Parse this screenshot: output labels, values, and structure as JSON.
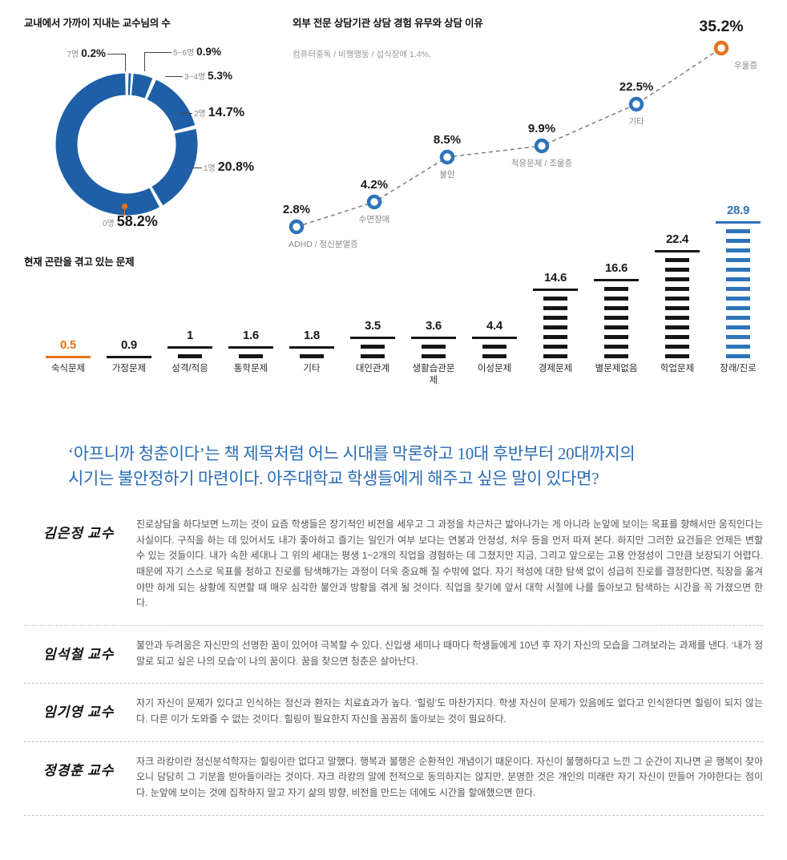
{
  "colors": {
    "blue": "#1e5fa8",
    "light_blue": "#2f74b9",
    "orange": "#e8731a",
    "dash_black": "#151515",
    "text_dark": "#1a1a1a",
    "text_gray": "#8a8a8a",
    "quote_blue": "#2a6cb5"
  },
  "chart_data": [
    {
      "type": "pie",
      "subtype": "donut",
      "title": "교내에서 가까이 지내는 교수님의 수",
      "labels": [
        "7명",
        "5~6명",
        "3~4명",
        "2명",
        "1명",
        "0명"
      ],
      "values": [
        0.2,
        0.9,
        5.3,
        14.7,
        20.8,
        58.2
      ],
      "unit": "%",
      "highlight_label": "0명",
      "ring_color": "#1e5fa8"
    },
    {
      "type": "line",
      "title": "외부 전문 상담기관 상담 경험 유무와 상담 이유",
      "note": "컴퓨터중독 / 비행행동 / 섭식장애 1.4%,",
      "categories": [
        "ADHD / 정신분열증",
        "수면장애",
        "불안",
        "적응문제 / 조울증",
        "기타",
        "우울증"
      ],
      "values": [
        2.8,
        4.2,
        8.5,
        9.9,
        22.5,
        35.2
      ],
      "unit": "%",
      "line_style": "dashed",
      "highlight_index": 5,
      "marker_color": "#2f74b9",
      "highlight_color": "#e8731a"
    },
    {
      "type": "bar",
      "title": "현재 곤란을 겪고 있는 문제",
      "categories": [
        "숙식문제",
        "가정문제",
        "성격/적응",
        "통학문제",
        "기타",
        "대인관계",
        "생활습관문제",
        "이성문제",
        "경제문제",
        "별문제없음",
        "학업문제",
        "장래/진로"
      ],
      "values": [
        0.5,
        0.9,
        1,
        1.6,
        1.8,
        3.5,
        3.6,
        4.4,
        14.6,
        16.6,
        22.4,
        28.9
      ],
      "highlight_first_color": "#e8731a",
      "highlight_last_color": "#2f74b9"
    }
  ],
  "quote": {
    "lines": [
      "‘아프니까 청춘이다’는 책 제목처럼 어느 시대를 막론하고 10대 후반부터 20대까지의",
      "시기는 불안정하기 마련이다. 아주대학교 학생들에게 해주고 싶은 말이 있다면?"
    ]
  },
  "interviews": [
    {
      "name": "김은정 교수",
      "text": "진로상담을 하다보면 느끼는 것이 요즘 학생들은 장기적인 비전을 세우고 그 과정을 차근차근 밟아나가는 게 아니라 눈앞에 보이는 목표를 향해서만 움직인다는 사실이다. 구직을 하는 데 있어서도 내가 좋아하고 즐기는 일인가 여부 보다는 연봉과 안정성, 처우 등을 먼저 따져 본다. 하지만 그러한 요건들은 언제든 변할 수 있는 것들이다. 내가 속한 세대나 그 위의 세대는 평생 1~2개의 직업을 경험하는 데 그쳤지만 지금, 그리고 앞으로는 고용 안정성이 그만큼 보장되기 어렵다. 때문에 자기 스스로 목표를 정하고 진로를 탐색해가는 과정이 더욱 중요해 질 수밖에 없다. 자기 적성에 대한 탐색 없이 성급히 진로를 결정한다면, 직장을 옮겨야만 하게 되는 상황에 직면할 때 매우 심각한 불안과 방황을 겪게 될 것이다. 직업을 찾기에 앞서 대학 시절에 나를 돌아보고 탐색하는 시간을 꼭 가졌으면 한다."
    },
    {
      "name": "임석철 교수",
      "text": "불안과 두려움은 자신만의 선명한 꿈이 있어야 극복할 수 있다. 신입생 세미나 때마다 학생들에게 10년 후 자기 자신의 모습을 그려보라는 과제를 낸다. ‘내가 정말로 되고 싶은 나의 모습’이 나의 꿈이다. 꿈을 찾으면 청춘은 살아난다."
    },
    {
      "name": "임기영 교수",
      "text": "자기 자신이 문제가 있다고 인식하는 정신과 환자는 치료효과가 높다. ‘힐링’도 마찬가지다. 학생 자신이 문제가 있음에도 없다고 인식한다면 힐링이 되지 않는다. 다른 이가 도와줄 수 없는 것이다. 힐링이 필요한지 자신을 꼼꼼히 돌아보는 것이 필요하다."
    },
    {
      "name": "정경훈 교수",
      "text": "자크 라캉이란 정신분석학자는 힐링이란 없다고 말했다. 행복과 불행은 순환적인 개념이기 때문이다. 자신이 불행하다고 느낀 그 순간이 지나면 곧 행복이 찾아오니 담담히 그 기분을 받아들이라는 것이다. 자크 라캉의 말에 전적으로 동의하지는 않지만, 분명한 것은 개인의 미래란 자기 자신이 만들어 가야한다는 점이다. 눈앞에 보이는 것에 집착하지 말고 자기 삶의 방향, 비전을 만드는 데에도 시간을 할애했으면 한다."
    }
  ]
}
